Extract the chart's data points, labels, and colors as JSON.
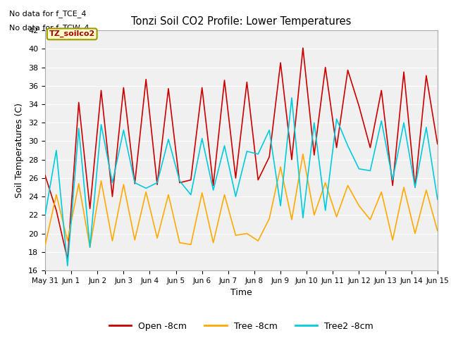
{
  "title": "Tonzi Soil CO2 Profile: Lower Temperatures",
  "xlabel": "Time",
  "ylabel": "Soil Temperatures (C)",
  "ylim": [
    16,
    42
  ],
  "yticks": [
    16,
    18,
    20,
    22,
    24,
    26,
    28,
    30,
    32,
    34,
    36,
    38,
    40,
    42
  ],
  "bg_color": "#f0f0f0",
  "fig_bg_color": "#ffffff",
  "annotations": [
    "No data for f_TCE_4",
    "No data for f_TCW_4"
  ],
  "legend_box_label": "TZ_soilco2",
  "legend_box_color": "#ffffcc",
  "legend_box_border": "#999900",
  "line_colors": {
    "open": "#cc0000",
    "tree": "#ffaa00",
    "tree2": "#00ccdd"
  },
  "legend_labels": [
    "Open -8cm",
    "Tree -8cm",
    "Tree2 -8cm"
  ],
  "xtick_labels": [
    "May 31",
    "Jun 1",
    "Jun 2",
    "Jun 3",
    "Jun 4",
    "Jun 5",
    "Jun 6",
    "Jun 7",
    "Jun 8",
    "Jun 9",
    "Jun 10",
    "Jun 11",
    "Jun 12",
    "Jun 13",
    "Jun 14",
    "Jun 15"
  ],
  "open_data": [
    26.3,
    22.5,
    17.2,
    34.2,
    22.7,
    35.5,
    24.0,
    35.8,
    25.4,
    36.7,
    25.3,
    35.7,
    25.5,
    25.8,
    35.8,
    25.2,
    36.6,
    26.0,
    36.4,
    25.8,
    28.3,
    38.5,
    28.0,
    40.1,
    28.5,
    38.0,
    29.3,
    37.7,
    33.8,
    29.3,
    35.5,
    25.2,
    37.5,
    25.0,
    37.1,
    29.7
  ],
  "tree_data": [
    18.7,
    24.2,
    19.2,
    25.4,
    18.5,
    25.7,
    19.2,
    25.3,
    19.3,
    24.5,
    19.5,
    24.2,
    19.0,
    18.8,
    24.4,
    19.0,
    24.2,
    19.8,
    20.0,
    19.2,
    21.6,
    27.2,
    21.5,
    28.6,
    22.0,
    25.5,
    21.8,
    25.2,
    23.0,
    21.5,
    24.5,
    19.3,
    25.0,
    20.0,
    24.7,
    20.3
  ],
  "tree2_data": [
    22.0,
    29.0,
    16.5,
    31.4,
    18.5,
    31.8,
    25.5,
    31.2,
    25.5,
    24.9,
    25.5,
    30.2,
    25.7,
    24.2,
    30.3,
    24.7,
    29.5,
    24.0,
    28.9,
    28.6,
    31.2,
    23.0,
    34.7,
    21.7,
    32.0,
    22.5,
    32.4,
    29.5,
    27.0,
    26.8,
    32.2,
    25.8,
    32.0,
    25.0,
    31.5,
    23.7
  ]
}
